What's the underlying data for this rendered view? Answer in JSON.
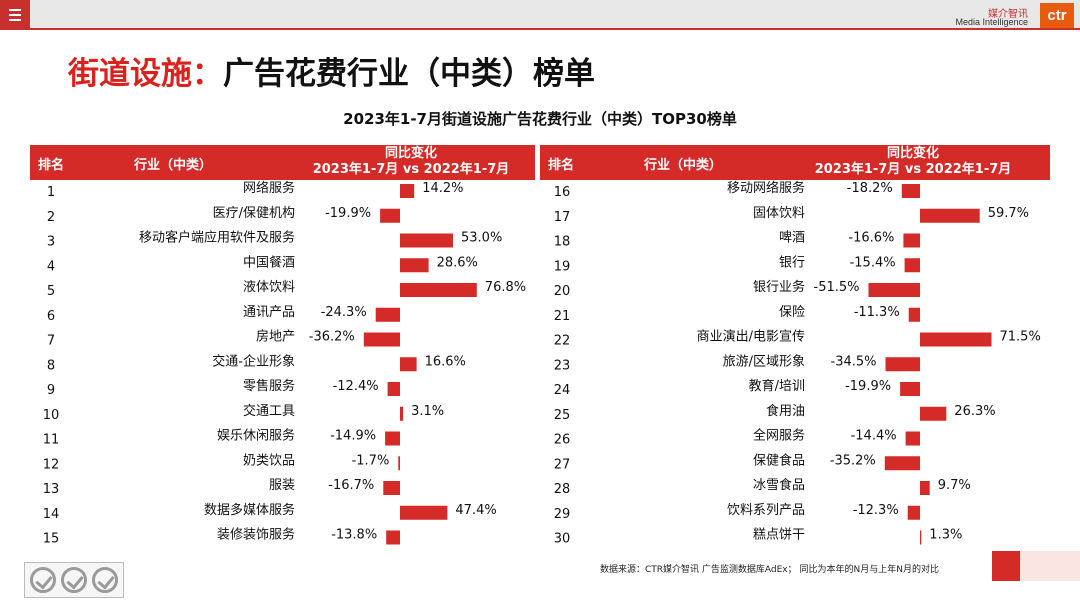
{
  "header": {
    "logo_cn": "媒介智讯",
    "logo_en": "Media Intelligence",
    "logo_mark": "ctr"
  },
  "title": {
    "highlight": "街道设施：",
    "rest": "广告花费行业（中类）榜单"
  },
  "colors": {
    "accent": "#d42b28",
    "bar": "#d42b28"
  },
  "table_header": {
    "rank": "排名",
    "industry": "行业（中类）",
    "change_line1": "同比变化",
    "change_line2": "2023年1-7月 vs 2022年1-7月"
  },
  "chart_data": {
    "type": "bar",
    "title": "2023年1-7月街道设施广告花费行业（中类）TOP30榜单",
    "unit": "%",
    "rows": [
      {
        "rank": 1,
        "industry": "网络服务",
        "value": 14.2
      },
      {
        "rank": 2,
        "industry": "医疗/保健机构",
        "value": -19.9
      },
      {
        "rank": 3,
        "industry": "移动客户端应用软件及服务",
        "value": 53.0
      },
      {
        "rank": 4,
        "industry": "中国餐酒",
        "value": 28.6
      },
      {
        "rank": 5,
        "industry": "液体饮料",
        "value": 76.8
      },
      {
        "rank": 6,
        "industry": "通讯产品",
        "value": -24.3
      },
      {
        "rank": 7,
        "industry": "房地产",
        "value": -36.2
      },
      {
        "rank": 8,
        "industry": "交通-企业形象",
        "value": 16.6
      },
      {
        "rank": 9,
        "industry": "零售服务",
        "value": -12.4
      },
      {
        "rank": 10,
        "industry": "交通工具",
        "value": 3.1
      },
      {
        "rank": 11,
        "industry": "娱乐休闲服务",
        "value": -14.9
      },
      {
        "rank": 12,
        "industry": "奶类饮品",
        "value": -1.7
      },
      {
        "rank": 13,
        "industry": "服装",
        "value": -16.7
      },
      {
        "rank": 14,
        "industry": "数据多媒体服务",
        "value": 47.4
      },
      {
        "rank": 15,
        "industry": "装修装饰服务",
        "value": -13.8
      },
      {
        "rank": 16,
        "industry": "移动网络服务",
        "value": -18.2
      },
      {
        "rank": 17,
        "industry": "固体饮料",
        "value": 59.7
      },
      {
        "rank": 18,
        "industry": "啤酒",
        "value": -16.6
      },
      {
        "rank": 19,
        "industry": "银行",
        "value": -15.4
      },
      {
        "rank": 20,
        "industry": "银行业务",
        "value": -51.5
      },
      {
        "rank": 21,
        "industry": "保险",
        "value": -11.3
      },
      {
        "rank": 22,
        "industry": "商业演出/电影宣传",
        "value": 71.5
      },
      {
        "rank": 23,
        "industry": "旅游/区域形象",
        "value": -34.5
      },
      {
        "rank": 24,
        "industry": "教育/培训",
        "value": -19.9
      },
      {
        "rank": 25,
        "industry": "食用油",
        "value": 26.3
      },
      {
        "rank": 26,
        "industry": "全网服务",
        "value": -14.4
      },
      {
        "rank": 27,
        "industry": "保健食品",
        "value": -35.2
      },
      {
        "rank": 28,
        "industry": "冰雪食品",
        "value": 9.7
      },
      {
        "rank": 29,
        "industry": "饮料系列产品",
        "value": -12.3
      },
      {
        "rank": 30,
        "industry": "糕点饼干",
        "value": 1.3
      }
    ]
  },
  "footer": {
    "source": "数据来源：CTR媒介智讯 广告监测数据库AdEx；  同比为本年的N月与上年N月的对比"
  }
}
